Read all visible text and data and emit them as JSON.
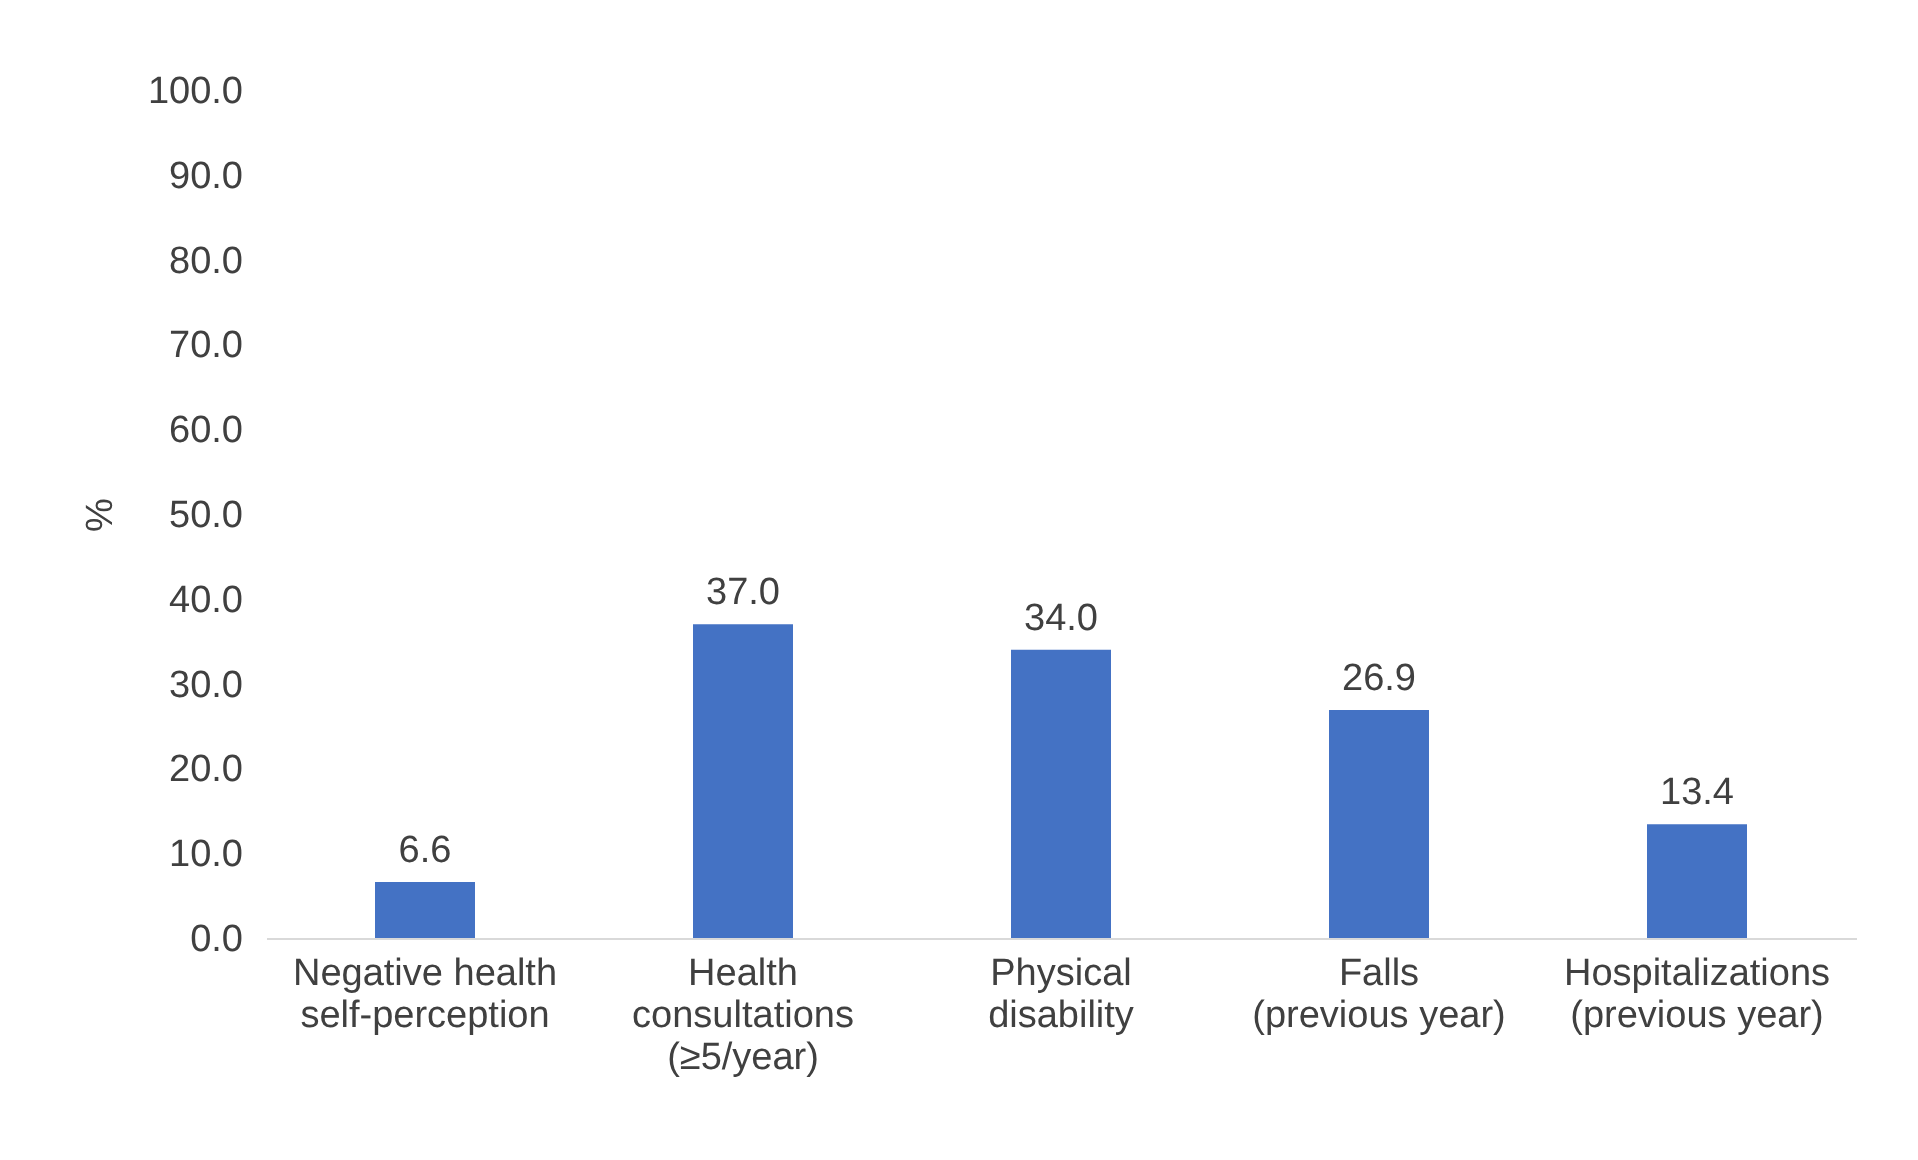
{
  "chart_data": {
    "type": "bar",
    "ylabel": "%",
    "categories": [
      "Negative health\nself-perception",
      "Health\nconsultations\n(≥5/year)",
      "Physical\ndisability",
      "Falls\n(previous year)",
      "Hospitalizations\n(previous year)"
    ],
    "values": [
      6.6,
      37.0,
      34.0,
      26.9,
      13.4
    ],
    "color": "#4472c4",
    "value_labels": [
      "6.6",
      "37.0",
      "34.0",
      "26.9",
      "13.4"
    ],
    "ylim": [
      0,
      100
    ],
    "yticks": [
      {
        "value": 0,
        "label": "0.0"
      },
      {
        "value": 10,
        "label": "10.0"
      },
      {
        "value": 20,
        "label": "20.0"
      },
      {
        "value": 30,
        "label": "30.0"
      },
      {
        "value": 40,
        "label": "40.0"
      },
      {
        "value": 50,
        "label": "50.0"
      },
      {
        "value": 60,
        "label": "60.0"
      },
      {
        "value": 70,
        "label": "70.0"
      },
      {
        "value": 80,
        "label": "80.0"
      },
      {
        "value": 90,
        "label": "90.0"
      },
      {
        "value": 100,
        "label": "100.0"
      }
    ],
    "grid": false
  }
}
